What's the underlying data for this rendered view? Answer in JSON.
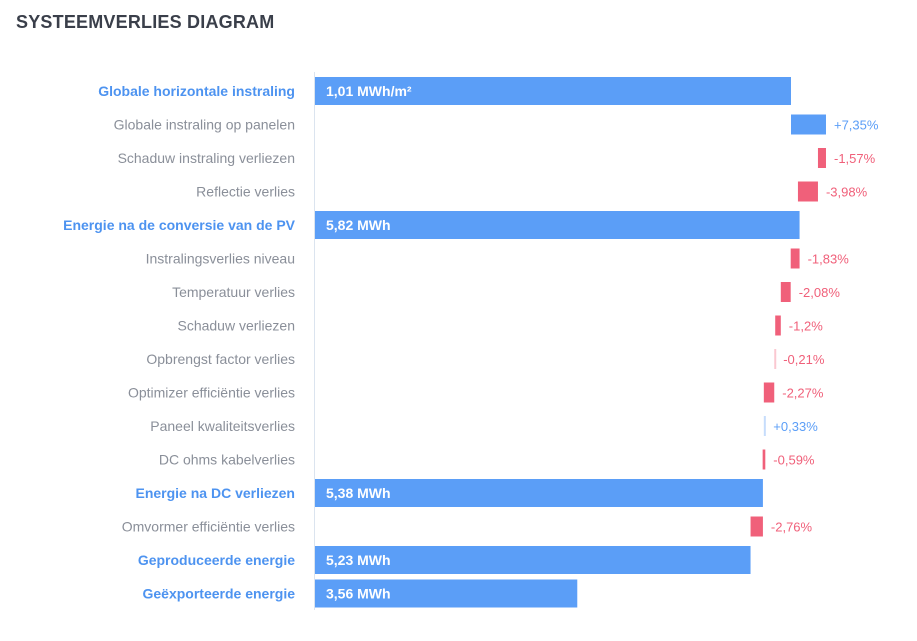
{
  "title": "SYSTEEMVERLIES DIAGRAM",
  "colors": {
    "main_bar": "#5b9ef7",
    "gain": "#5b9ef7",
    "loss": "#f0607a",
    "main_label": "#4d93f0",
    "sub_label": "#8a8f99",
    "axis": "#dbe4ef"
  },
  "chart_data": {
    "type": "waterfall",
    "rows": [
      {
        "label": "Globale horizontale instraling",
        "kind": "total",
        "bar_text": "1,01 MWh/m²",
        "end": 1.0
      },
      {
        "label": "Globale instraling op panelen",
        "kind": "change",
        "value_text": "+7,35%",
        "change": 7.35
      },
      {
        "label": "Schaduw instraling verliezen",
        "kind": "change",
        "value_text": "-1,57%",
        "change": -1.57
      },
      {
        "label": "Reflectie verlies",
        "kind": "change",
        "value_text": "-3,98%",
        "change": -3.98
      },
      {
        "label": "Energie na de conversie van de PV",
        "kind": "total",
        "bar_text": "5,82 MWh",
        "end": 1.018
      },
      {
        "label": "Instralingsverlies niveau",
        "kind": "change",
        "value_text": "-1,83%",
        "change": -1.83
      },
      {
        "label": "Temperatuur verlies",
        "kind": "change",
        "value_text": "-2,08%",
        "change": -2.08
      },
      {
        "label": "Schaduw verliezen",
        "kind": "change",
        "value_text": "-1,2%",
        "change": -1.2
      },
      {
        "label": "Opbrengst factor verlies",
        "kind": "change",
        "value_text": "-0,21%",
        "change": -0.21
      },
      {
        "label": "Optimizer efficiëntie verlies",
        "kind": "change",
        "value_text": "-2,27%",
        "change": -2.27
      },
      {
        "label": "Paneel kwaliteitsverlies",
        "kind": "change",
        "value_text": "+0,33%",
        "change": 0.33
      },
      {
        "label": "DC ohms kabelverlies",
        "kind": "change",
        "value_text": "-0,59%",
        "change": -0.59
      },
      {
        "label": "Energie na DC verliezen",
        "kind": "total",
        "bar_text": "5,38 MWh",
        "end": 0.941
      },
      {
        "label": "Omvormer efficiëntie verlies",
        "kind": "change",
        "value_text": "-2,76%",
        "change": -2.76
      },
      {
        "label": "Geproduceerde energie",
        "kind": "total",
        "bar_text": "5,23 MWh",
        "end": 0.915
      },
      {
        "label": "Geëxporteerde energie",
        "kind": "total",
        "bar_text": "3,56 MWh",
        "end": 0.551
      }
    ]
  }
}
